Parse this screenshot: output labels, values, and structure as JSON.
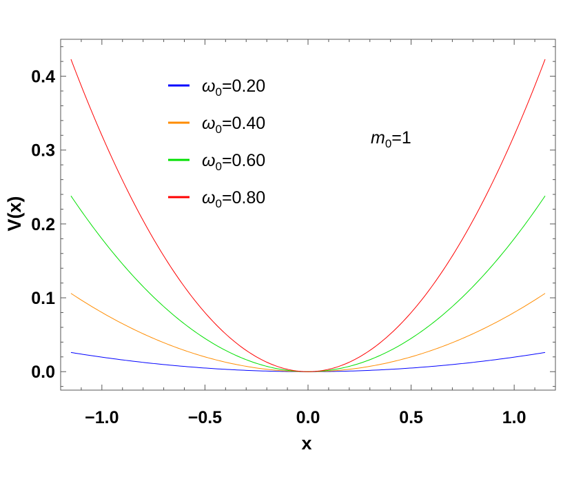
{
  "chart_data": {
    "type": "line",
    "xlabel": "x",
    "ylabel": "V(x)",
    "xlim": [
      -1.2,
      1.2
    ],
    "ylim": [
      -0.025,
      0.45
    ],
    "x_ticks": [
      -1.0,
      -0.5,
      0.0,
      0.5,
      1.0
    ],
    "x_tick_labels": [
      "−1.0",
      "−0.5",
      "0.0",
      "0.5",
      "1.0"
    ],
    "y_ticks": [
      0.0,
      0.1,
      0.2,
      0.3,
      0.4
    ],
    "y_tick_labels": [
      "0.0",
      "0.1",
      "0.2",
      "0.3",
      "0.4"
    ],
    "grid": false,
    "legend_position": "top-left",
    "annotation": {
      "symbol": "m",
      "subscript": "0",
      "suffix": "=1"
    },
    "x_range": [
      -1.15,
      1.15
    ],
    "series": [
      {
        "symbol": "ω",
        "subscript": "0",
        "suffix": "=0.20",
        "omega": 0.2,
        "color": "#0000ff",
        "y_at_edge": 0.026
      },
      {
        "symbol": "ω",
        "subscript": "0",
        "suffix": "=0.40",
        "omega": 0.4,
        "color": "#ff8c00",
        "y_at_edge": 0.106
      },
      {
        "symbol": "ω",
        "subscript": "0",
        "suffix": "=0.60",
        "omega": 0.6,
        "color": "#00e000",
        "y_at_edge": 0.238
      },
      {
        "symbol": "ω",
        "subscript": "0",
        "suffix": "=0.80",
        "omega": 0.8,
        "color": "#ff0000",
        "y_at_edge": 0.423
      }
    ]
  }
}
